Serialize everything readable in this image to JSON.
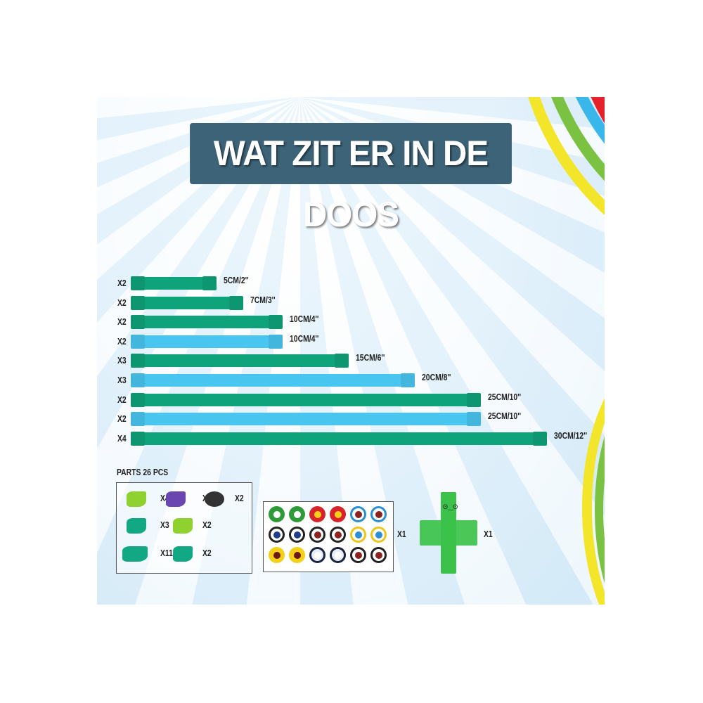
{
  "title": "WAT ZIT ER IN DE DOOS",
  "colors": {
    "green": "#0fa37b",
    "blue": "#48c6f0",
    "title_bg": "#3d6378"
  },
  "strips": [
    {
      "qty": "X2",
      "length_cm": 5,
      "label": "5CM/2''",
      "color": "green"
    },
    {
      "qty": "X2",
      "length_cm": 7,
      "label": "7CM/3''",
      "color": "green"
    },
    {
      "qty": "X2",
      "length_cm": 10,
      "label": "10CM/4''",
      "color": "green"
    },
    {
      "qty": "X2",
      "length_cm": 10,
      "label": "10CM/4''",
      "color": "blue"
    },
    {
      "qty": "X3",
      "length_cm": 15,
      "label": "15CM/6''",
      "color": "green"
    },
    {
      "qty": "X3",
      "length_cm": 20,
      "label": "20CM/8''",
      "color": "blue"
    },
    {
      "qty": "X2",
      "length_cm": 25,
      "label": "25CM/10''",
      "color": "green"
    },
    {
      "qty": "X2",
      "length_cm": 25,
      "label": "25CM/10''",
      "color": "blue"
    },
    {
      "qty": "X4",
      "length_cm": 30,
      "label": "30CM/12''",
      "color": "green"
    }
  ],
  "parts": {
    "heading": "PARTS  26 PCS",
    "items": [
      {
        "icon": "lime-connector-icon",
        "qty": "X4",
        "color": "#8fd12f"
      },
      {
        "icon": "purple-connector-icon",
        "qty": "X2",
        "color": "#6a46b0"
      },
      {
        "icon": "black-base-icon",
        "qty": "X2",
        "color": "#333"
      },
      {
        "icon": "teal-joint-icon",
        "qty": "X3",
        "color": "#12a883"
      },
      {
        "icon": "lime-joint-icon",
        "qty": "X2",
        "color": "#8fd12f"
      },
      {
        "icon": "teal-claw-icon",
        "qty": "X11",
        "color": "#12a883"
      },
      {
        "icon": "teal-corner-icon",
        "qty": "X2",
        "color": "#12a883"
      }
    ]
  },
  "eye_sheet": {
    "qty": "X1",
    "rows": [
      [
        [
          "#2e9a3a",
          "#fff"
        ],
        [
          "#2e9a3a",
          "#fff"
        ],
        [
          "#d8232a",
          "#f5d019"
        ],
        [
          "#d8232a",
          "#f5d019"
        ],
        [
          "#fff",
          "#8b2320"
        ],
        [
          "#fff",
          "#8b2320"
        ]
      ],
      [
        [
          "#fff",
          "#1f3d8a"
        ],
        [
          "#fff",
          "#1f3d8a"
        ],
        [
          "#fff",
          "#8b2320"
        ],
        [
          "#fff",
          "#8b2320"
        ],
        [
          "#fff",
          "#2d8fd6"
        ],
        [
          "#fff",
          "#2d8fd6"
        ]
      ],
      [
        [
          "#f5d019",
          "#6b1a1a"
        ],
        [
          "#f5d019",
          "#6b1a1a"
        ],
        [
          "#e8eef5",
          "#ffffff"
        ],
        [
          "#e8eef5",
          "#ffffff"
        ],
        [
          "#fff",
          "#8b2320"
        ],
        [
          "#fff",
          "#8b2320"
        ]
      ]
    ],
    "rim": [
      [
        "#2e9a3a",
        "#2e9a3a",
        "#d8232a",
        "#d8232a",
        "#2a8fd0",
        "#2a8fd0"
      ],
      [
        "#222",
        "#222",
        "#222",
        "#222",
        "#f0c419",
        "#f0c419"
      ],
      [
        "#f5d019",
        "#f5d019",
        "#1a2340",
        "#1a2340",
        "#222",
        "#222"
      ]
    ]
  },
  "figure": {
    "qty": "X1",
    "color": "#3cc24a"
  }
}
